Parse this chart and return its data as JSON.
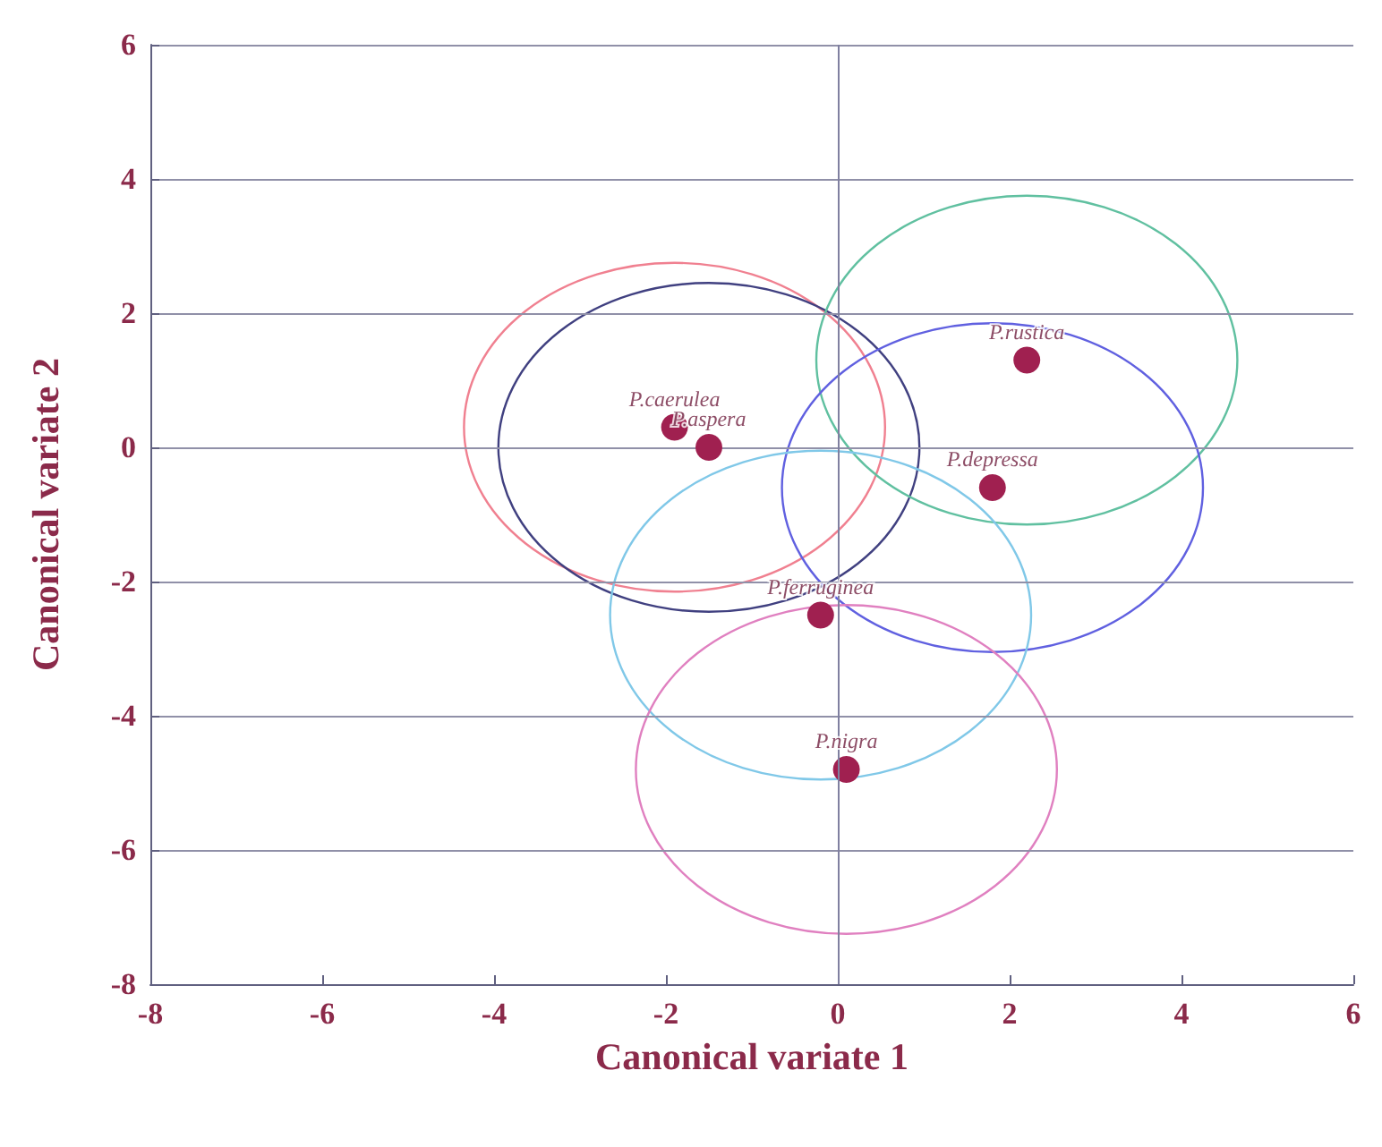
{
  "chart_data": {
    "type": "scatter",
    "xlabel": "Canonical variate 1",
    "ylabel": "Canonical variate 2",
    "xlim": [
      -8,
      6
    ],
    "xticks": [
      -8,
      -6,
      -4,
      -2,
      0,
      2,
      4,
      6
    ],
    "ylim": [
      -8,
      6
    ],
    "yticks": [
      -8,
      -6,
      -4,
      -2,
      0,
      2,
      4,
      6
    ],
    "grid": "y",
    "marker": "circle",
    "ref_lines": [
      {
        "axis": "x",
        "value": 0,
        "color": "#8080a0"
      }
    ],
    "series": [
      {
        "color": "#a02050",
        "x": [
          -1.9,
          -1.5,
          2.2,
          1.8,
          -0.2,
          0.1
        ],
        "values": [
          0.3,
          0.0,
          1.3,
          -0.6,
          -2.5,
          -4.8
        ]
      }
    ],
    "annotations": [
      {
        "text": "P.caerulea",
        "x": -1.9,
        "y": 0.3
      },
      {
        "text": "P.aspera",
        "x": -1.5,
        "y": 0.0
      },
      {
        "text": "P.rustica",
        "x": 2.2,
        "y": 1.3
      },
      {
        "text": "P.depressa",
        "x": 1.8,
        "y": -0.6
      },
      {
        "text": "P.ferruginea",
        "x": -0.2,
        "y": -2.5
      },
      {
        "text": "P.nigra",
        "x": 0.1,
        "y": -4.8
      }
    ]
  }
}
